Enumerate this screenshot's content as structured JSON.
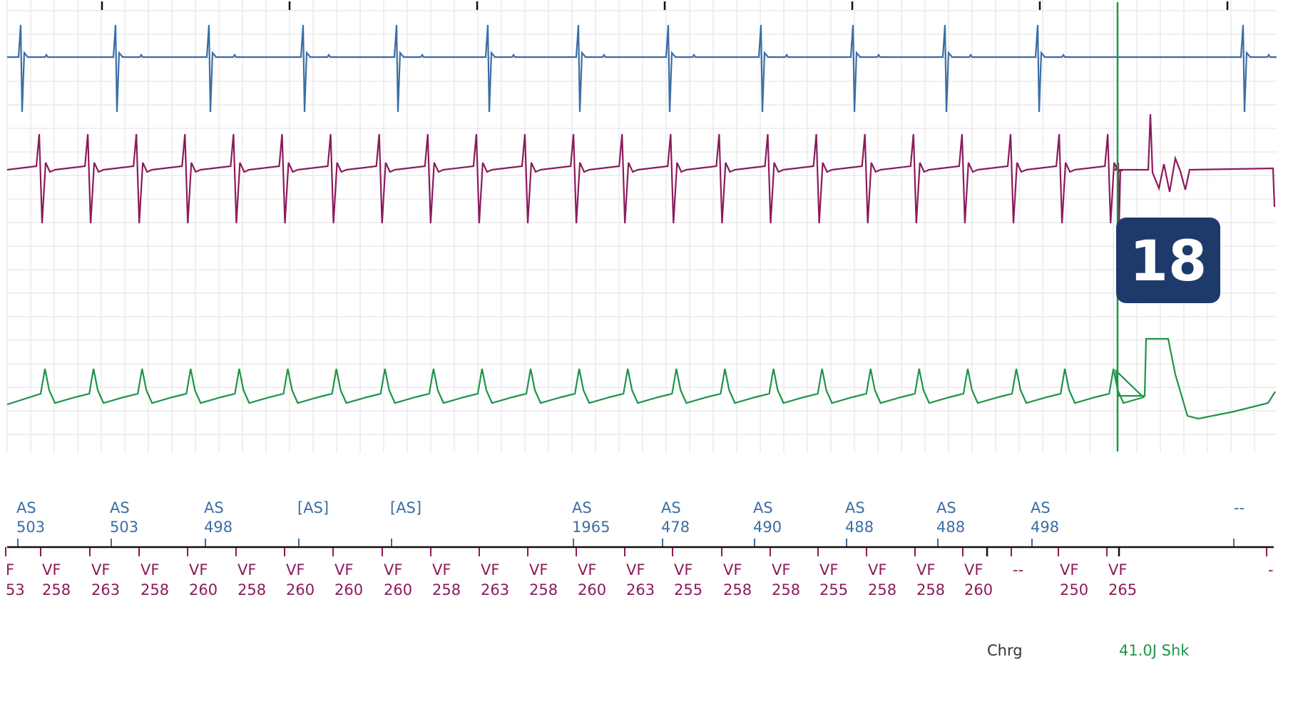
{
  "chart_data": {
    "type": "line",
    "channels": [
      {
        "name": "",
        "color": "#3a6ea5",
        "kind": "atrial"
      },
      {
        "name": "",
        "color": "#8c1a5c",
        "kind": "ventricular"
      },
      {
        "name": "",
        "color": "#1f9447",
        "kind": "shock"
      }
    ],
    "atrial_markers": [
      {
        "code": "AS",
        "interval": "503"
      },
      {
        "code": "AS",
        "interval": "503"
      },
      {
        "code": "AS",
        "interval": "498"
      },
      {
        "code": "[AS]",
        "interval": ""
      },
      {
        "code": "[AS]",
        "interval": ""
      },
      {
        "code": "AS",
        "interval": "1965"
      },
      {
        "code": "AS",
        "interval": "478"
      },
      {
        "code": "AS",
        "interval": "490"
      },
      {
        "code": "AS",
        "interval": "488"
      },
      {
        "code": "AS",
        "interval": "488"
      },
      {
        "code": "AS",
        "interval": "498"
      },
      {
        "code": "--",
        "interval": ""
      }
    ],
    "ventricular_markers": [
      {
        "code": "F",
        "interval": "53"
      },
      {
        "code": "VF",
        "interval": "258"
      },
      {
        "code": "VF",
        "interval": "263"
      },
      {
        "code": "VF",
        "interval": "258"
      },
      {
        "code": "VF",
        "interval": "260"
      },
      {
        "code": "VF",
        "interval": "258"
      },
      {
        "code": "VF",
        "interval": "260"
      },
      {
        "code": "VF",
        "interval": "260"
      },
      {
        "code": "VF",
        "interval": "260"
      },
      {
        "code": "VF",
        "interval": "258"
      },
      {
        "code": "VF",
        "interval": "263"
      },
      {
        "code": "VF",
        "interval": "258"
      },
      {
        "code": "VF",
        "interval": "260"
      },
      {
        "code": "VF",
        "interval": "263"
      },
      {
        "code": "VF",
        "interval": "255"
      },
      {
        "code": "VF",
        "interval": "258"
      },
      {
        "code": "VF",
        "interval": "258"
      },
      {
        "code": "VF",
        "interval": "255"
      },
      {
        "code": "VF",
        "interval": "258"
      },
      {
        "code": "VF",
        "interval": "258"
      },
      {
        "code": "VF",
        "interval": "260"
      },
      {
        "code": "--",
        "interval": ""
      },
      {
        "code": "VF",
        "interval": "250"
      },
      {
        "code": "VF",
        "interval": "265"
      },
      {
        "code": "-",
        "interval": ""
      }
    ],
    "events": {
      "charge_label": "Chrg",
      "shock_label": "41.0J Shk"
    },
    "badge": "18",
    "grid": true
  },
  "colors": {
    "atrial": "#3a6ea5",
    "ventricular": "#8c1a5c",
    "shock": "#1f9447",
    "badge_bg": "#1e3a6b",
    "grid": "#e2e2e2"
  }
}
